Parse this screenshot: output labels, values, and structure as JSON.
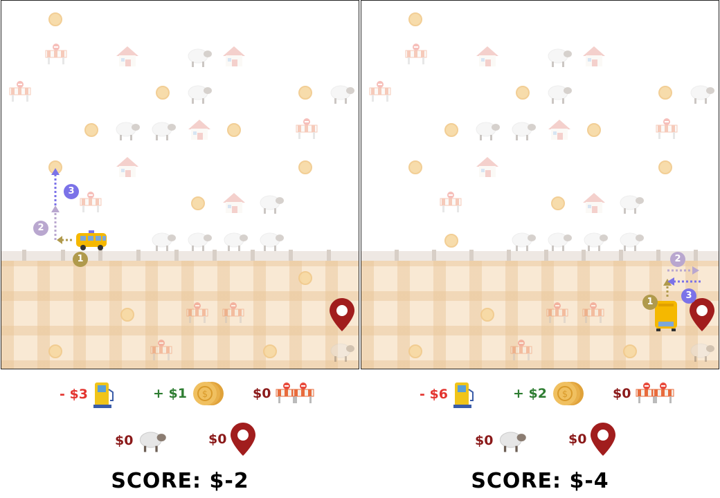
{
  "panels": [
    {
      "stats": {
        "fuel": "- $3",
        "coins": "+ $1",
        "barriers": "$0",
        "sheep": "$0",
        "destination": "$0"
      },
      "score": "SCORE: $-2",
      "path_steps": [
        "1",
        "2",
        "3"
      ]
    },
    {
      "stats": {
        "fuel": "- $6",
        "coins": "+ $2",
        "barriers": "$0",
        "sheep": "$0",
        "destination": "$0"
      },
      "score": "SCORE: $-4",
      "path_steps": [
        "1",
        "2",
        "3"
      ]
    }
  ],
  "colors": {
    "step1": "#b09a4c",
    "step2": "#b9a7cf",
    "step3": "#7b72e8",
    "negative": "#e3342f",
    "positive": "#2e7d32",
    "zero": "#8b1a1a",
    "pin": "#a11d1d"
  },
  "icons": [
    "fuel-pump-icon",
    "coins-icon",
    "barrier-icon",
    "sheep-icon",
    "map-pin-icon",
    "house-icon",
    "school-bus-icon"
  ]
}
